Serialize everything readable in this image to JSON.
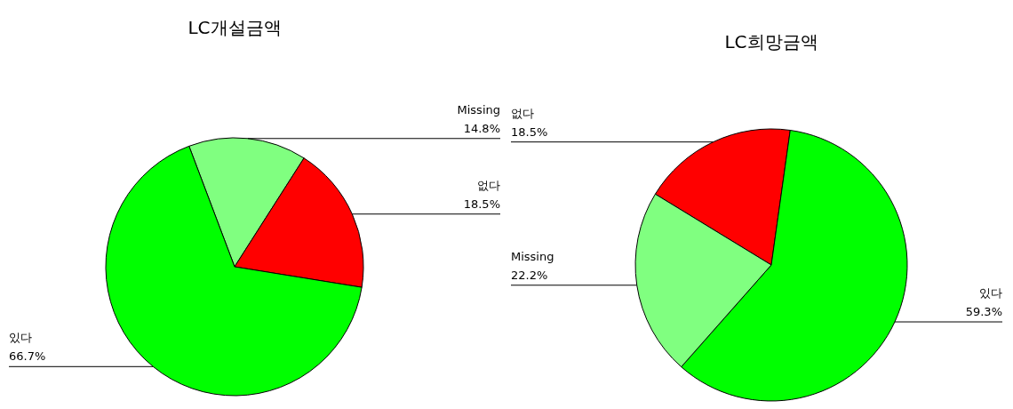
{
  "chart_data": [
    {
      "type": "pie",
      "title": "LC개설금액",
      "categories": [
        "Missing",
        "없다",
        "있다"
      ],
      "values": [
        14.8,
        18.5,
        66.7
      ],
      "colors": [
        "#80ff80",
        "#ff0000",
        "#00ff00"
      ],
      "value_labels": [
        "14.8%",
        "18.5%",
        "66.7%"
      ]
    },
    {
      "type": "pie",
      "title": "LC희망금액",
      "categories": [
        "없다",
        "있다",
        "Missing"
      ],
      "values": [
        18.5,
        59.3,
        22.2
      ],
      "colors": [
        "#ff0000",
        "#00ff00",
        "#80ff80"
      ],
      "value_labels": [
        "18.5%",
        "59.3%",
        "22.2%"
      ]
    }
  ]
}
